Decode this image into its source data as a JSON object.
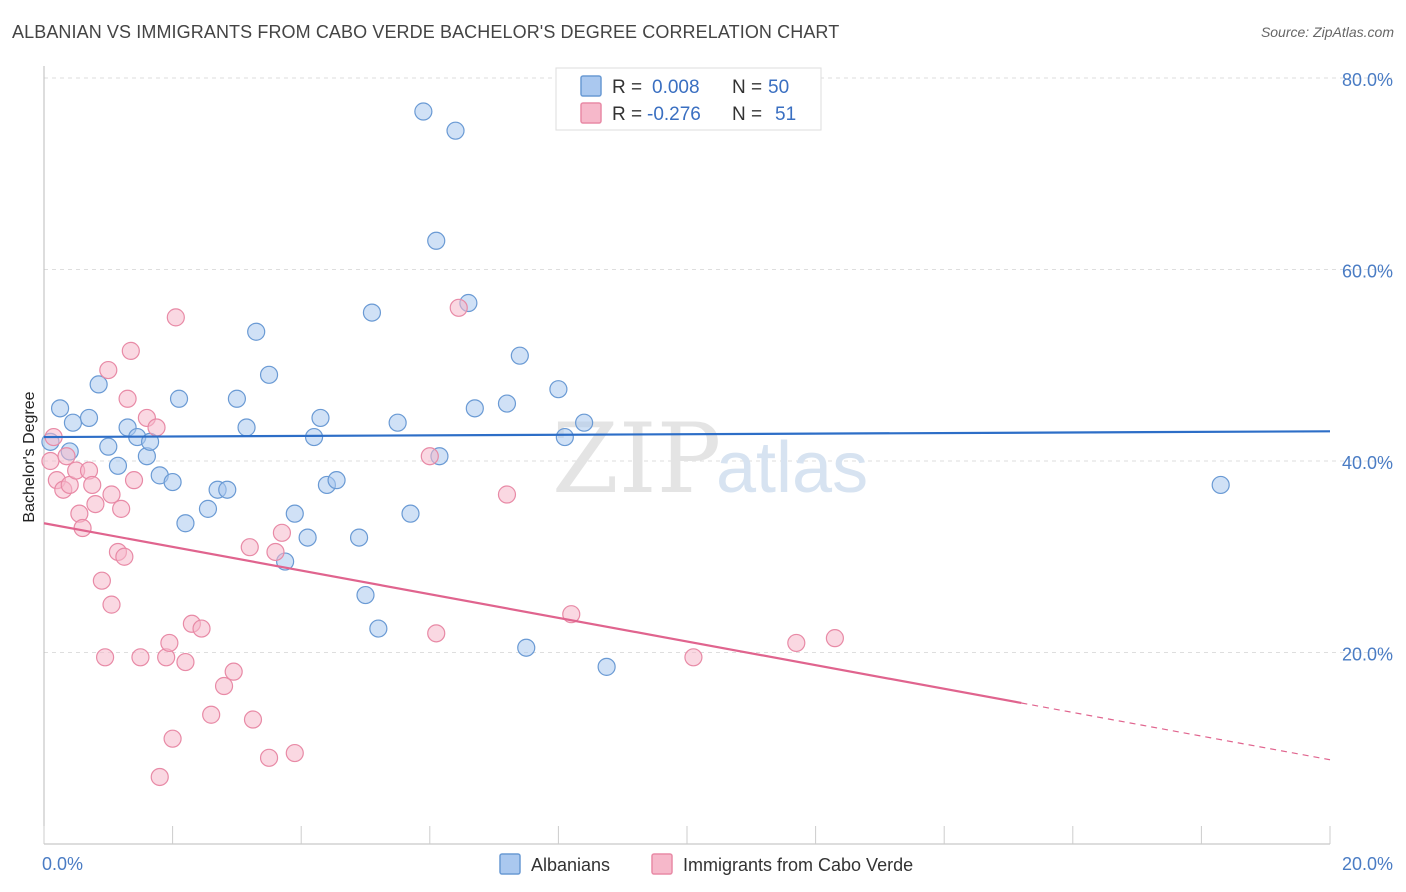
{
  "title": "ALBANIAN VS IMMIGRANTS FROM CABO VERDE BACHELOR'S DEGREE CORRELATION CHART",
  "source": "Source: ZipAtlas.com",
  "watermark": {
    "zip": "ZIP",
    "atlas": "atlas"
  },
  "legend_top": {
    "r_label": "R =",
    "n_label": "N =",
    "rows": [
      {
        "r": "0.008",
        "n": "50",
        "color": "#aac8ef"
      },
      {
        "r": "-0.276",
        "n": "51",
        "color": "#f6b8ca"
      }
    ]
  },
  "chart_data": {
    "type": "scatter",
    "xlabel": "",
    "ylabel": "Bachelor's Degree",
    "xlim": [
      0,
      20
    ],
    "ylim": [
      0,
      80
    ],
    "x_tick_labels": [
      "0.0%",
      "20.0%"
    ],
    "y_ticks": [
      20,
      40,
      60,
      80
    ],
    "y_tick_labels": [
      "20.0%",
      "40.0%",
      "60.0%",
      "80.0%"
    ],
    "grid": true,
    "legend_placement": "bottom-center",
    "series": [
      {
        "name": "Albanians",
        "color": "#aac8ef",
        "stroke": "#6a9ad4",
        "line_color": "#2d6ec7",
        "trend": {
          "x": [
            0,
            20
          ],
          "y": [
            42.5,
            43.1
          ],
          "dashed_from": null
        },
        "points": [
          [
            0.1,
            42.0
          ],
          [
            0.25,
            45.5
          ],
          [
            0.45,
            44.0
          ],
          [
            0.7,
            44.5
          ],
          [
            0.85,
            48.0
          ],
          [
            1.0,
            41.5
          ],
          [
            1.15,
            39.5
          ],
          [
            1.3,
            43.5
          ],
          [
            1.45,
            42.5
          ],
          [
            1.6,
            40.5
          ],
          [
            1.8,
            38.5
          ],
          [
            2.0,
            37.8
          ],
          [
            2.1,
            46.5
          ],
          [
            2.2,
            33.5
          ],
          [
            2.55,
            35.0
          ],
          [
            2.7,
            37.0
          ],
          [
            2.85,
            37.0
          ],
          [
            3.0,
            46.5
          ],
          [
            3.15,
            43.5
          ],
          [
            3.3,
            53.5
          ],
          [
            3.5,
            49.0
          ],
          [
            3.75,
            29.5
          ],
          [
            3.9,
            34.5
          ],
          [
            4.1,
            32.0
          ],
          [
            4.2,
            42.5
          ],
          [
            4.3,
            44.5
          ],
          [
            4.4,
            37.5
          ],
          [
            4.55,
            38.0
          ],
          [
            4.9,
            32.0
          ],
          [
            5.0,
            26.0
          ],
          [
            5.1,
            55.5
          ],
          [
            5.2,
            22.5
          ],
          [
            5.5,
            44.0
          ],
          [
            5.7,
            34.5
          ],
          [
            5.9,
            76.5
          ],
          [
            6.1,
            63.0
          ],
          [
            6.15,
            40.5
          ],
          [
            6.4,
            74.5
          ],
          [
            6.6,
            56.5
          ],
          [
            6.7,
            45.5
          ],
          [
            7.2,
            46.0
          ],
          [
            7.4,
            51.0
          ],
          [
            7.5,
            20.5
          ],
          [
            8.0,
            47.5
          ],
          [
            8.1,
            42.5
          ],
          [
            8.4,
            44.0
          ],
          [
            8.75,
            18.5
          ],
          [
            18.3,
            37.5
          ],
          [
            0.4,
            41.0
          ],
          [
            1.65,
            42.0
          ]
        ]
      },
      {
        "name": "Immigrants from Cabo Verde",
        "color": "#f6b8ca",
        "stroke": "#e88aa6",
        "line_color": "#e0648e",
        "trend": {
          "x": [
            0,
            20
          ],
          "y": [
            33.5,
            8.8
          ],
          "dashed_from": 15.2
        },
        "points": [
          [
            0.1,
            40.0
          ],
          [
            0.15,
            42.5
          ],
          [
            0.2,
            38.0
          ],
          [
            0.3,
            37.0
          ],
          [
            0.4,
            37.5
          ],
          [
            0.5,
            39.0
          ],
          [
            0.55,
            34.5
          ],
          [
            0.6,
            33.0
          ],
          [
            0.7,
            39.0
          ],
          [
            0.75,
            37.5
          ],
          [
            0.8,
            35.5
          ],
          [
            0.9,
            27.5
          ],
          [
            0.95,
            19.5
          ],
          [
            1.0,
            49.5
          ],
          [
            1.05,
            25.0
          ],
          [
            1.15,
            30.5
          ],
          [
            1.2,
            35.0
          ],
          [
            1.25,
            30.0
          ],
          [
            1.3,
            46.5
          ],
          [
            1.35,
            51.5
          ],
          [
            1.4,
            38.0
          ],
          [
            1.5,
            19.5
          ],
          [
            1.6,
            44.5
          ],
          [
            1.75,
            43.5
          ],
          [
            1.8,
            7.0
          ],
          [
            1.9,
            19.5
          ],
          [
            1.95,
            21.0
          ],
          [
            2.0,
            11.0
          ],
          [
            2.05,
            55.0
          ],
          [
            2.2,
            19.0
          ],
          [
            2.3,
            23.0
          ],
          [
            2.45,
            22.5
          ],
          [
            2.6,
            13.5
          ],
          [
            2.8,
            16.5
          ],
          [
            2.95,
            18.0
          ],
          [
            3.2,
            31.0
          ],
          [
            3.25,
            13.0
          ],
          [
            3.5,
            9.0
          ],
          [
            3.6,
            30.5
          ],
          [
            3.7,
            32.5
          ],
          [
            3.9,
            9.5
          ],
          [
            6.0,
            40.5
          ],
          [
            6.1,
            22.0
          ],
          [
            6.45,
            56.0
          ],
          [
            7.2,
            36.5
          ],
          [
            8.2,
            24.0
          ],
          [
            10.1,
            19.5
          ],
          [
            11.7,
            21.0
          ],
          [
            12.3,
            21.5
          ],
          [
            0.35,
            40.5
          ],
          [
            1.05,
            36.5
          ]
        ]
      }
    ]
  }
}
